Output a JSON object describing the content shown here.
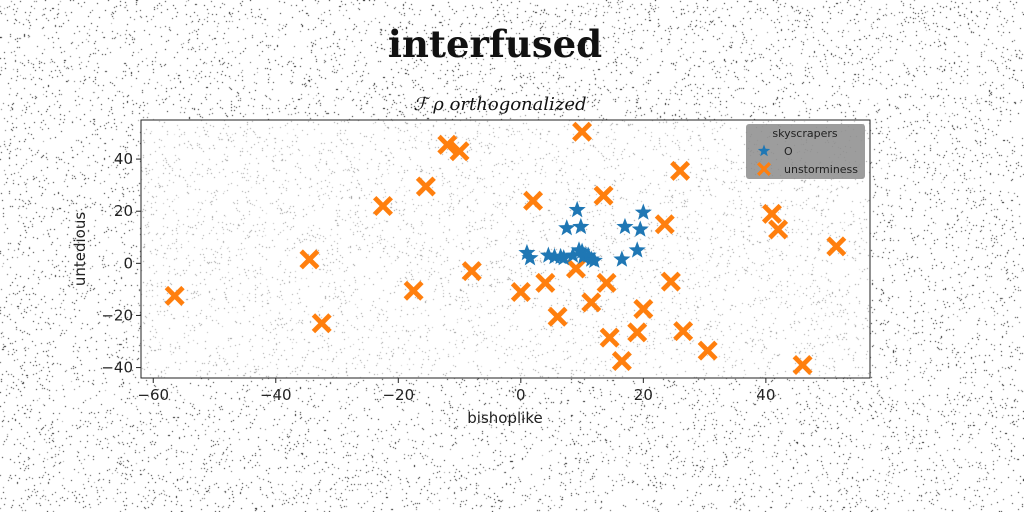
{
  "figure": {
    "suptitle": "interfused"
  },
  "chart_data": {
    "type": "scatter",
    "title": "ℱ ρ orthogonalized",
    "xlabel": "bishoplike",
    "ylabel": "untedious",
    "xlim": [
      -62,
      57
    ],
    "ylim": [
      -44,
      55
    ],
    "xticks": [
      -60,
      -40,
      -20,
      0,
      20,
      40
    ],
    "yticks": [
      -40,
      -20,
      0,
      20,
      40
    ],
    "grid": false,
    "legend": {
      "title": "skyscrapers",
      "placement": "top-right"
    },
    "series": [
      {
        "name": "O",
        "marker": "star",
        "color": "#1f77b4",
        "points": [
          [
            1,
            4
          ],
          [
            1.5,
            2
          ],
          [
            4.5,
            3
          ],
          [
            5.5,
            2.5
          ],
          [
            6.5,
            2.5
          ],
          [
            7.5,
            13.5
          ],
          [
            8.5,
            3
          ],
          [
            9.2,
            20.5
          ],
          [
            9.8,
            14
          ],
          [
            10,
            4.5
          ],
          [
            10.2,
            2.5
          ],
          [
            11,
            3
          ],
          [
            11.5,
            1.5
          ],
          [
            12,
            1
          ],
          [
            16.5,
            1.5
          ],
          [
            17,
            14
          ],
          [
            19,
            5
          ],
          [
            19.5,
            13
          ],
          [
            20,
            19.5
          ],
          [
            9.5,
            5
          ],
          [
            7,
            2
          ]
        ]
      },
      {
        "name": "unstorminess",
        "marker": "X",
        "color": "#ff7f0e",
        "points": [
          [
            -56.5,
            -12.5
          ],
          [
            -34.5,
            1.5
          ],
          [
            -32.5,
            -23
          ],
          [
            -22.5,
            22
          ],
          [
            -17.5,
            -10.5
          ],
          [
            -15.5,
            29.5
          ],
          [
            -12,
            45.5
          ],
          [
            -10,
            43
          ],
          [
            -8,
            -3
          ],
          [
            0,
            -11
          ],
          [
            2,
            24
          ],
          [
            4,
            -7.5
          ],
          [
            6,
            -20.5
          ],
          [
            9,
            -2
          ],
          [
            10,
            50.5
          ],
          [
            11.5,
            -15
          ],
          [
            13.5,
            26
          ],
          [
            14,
            -7.5
          ],
          [
            14.5,
            -28.5
          ],
          [
            16.5,
            -37.5
          ],
          [
            19,
            -26.5
          ],
          [
            20,
            -17.5
          ],
          [
            23.5,
            15
          ],
          [
            24.5,
            -7
          ],
          [
            26,
            35.5
          ],
          [
            26.5,
            -26
          ],
          [
            30.5,
            -33.5
          ],
          [
            41,
            19
          ],
          [
            42,
            13
          ],
          [
            46,
            -39
          ],
          [
            51.5,
            6.5
          ]
        ]
      }
    ]
  }
}
